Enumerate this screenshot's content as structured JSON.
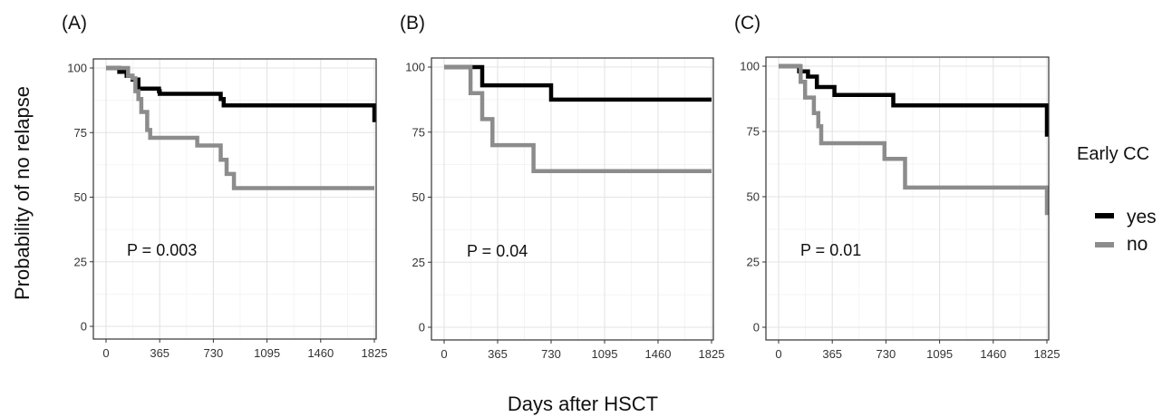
{
  "figure": {
    "x_axis_title": "Days after HSCT",
    "y_axis_title": "Probability of no relapse",
    "legend": {
      "title": "Early CC",
      "items": [
        {
          "label": "yes",
          "color": "#000000"
        },
        {
          "label": "no",
          "color": "#8c8c8c"
        }
      ]
    }
  },
  "chart_data": [
    {
      "type": "line",
      "panel": "(A)",
      "annotation": "P = 0.003",
      "xlim": [
        0,
        1825
      ],
      "ylim": [
        0,
        100
      ],
      "x_ticks": [
        0,
        365,
        730,
        1095,
        1460,
        1825
      ],
      "y_ticks": [
        0,
        25,
        50,
        75,
        100
      ],
      "grid": true,
      "series": [
        {
          "name": "yes",
          "color": "#000000",
          "x": [
            0,
            40,
            90,
            140,
            180,
            220,
            360,
            365,
            730,
            780,
            800,
            1760,
            1825
          ],
          "y": [
            100,
            100,
            98.5,
            97,
            95.5,
            92,
            91,
            90,
            90,
            88,
            85.5,
            85.5,
            79
          ]
        },
        {
          "name": "no",
          "color": "#8c8c8c",
          "x": [
            0,
            60,
            150,
            180,
            200,
            220,
            240,
            280,
            300,
            600,
            620,
            780,
            820,
            870,
            1825
          ],
          "y": [
            100,
            100,
            97,
            96,
            91,
            88,
            83,
            76,
            73,
            73,
            70,
            64.5,
            59,
            53.5,
            53.5
          ]
        }
      ]
    },
    {
      "type": "line",
      "panel": "(B)",
      "annotation": "P = 0.04",
      "xlim": [
        0,
        1825
      ],
      "ylim": [
        0,
        100
      ],
      "x_ticks": [
        0,
        365,
        730,
        1095,
        1460,
        1825
      ],
      "y_ticks": [
        0,
        25,
        50,
        75,
        100
      ],
      "grid": true,
      "series": [
        {
          "name": "yes",
          "color": "#000000",
          "x": [
            0,
            240,
            260,
            730,
            1825
          ],
          "y": [
            100,
            100,
            93,
            87.5,
            87.5
          ]
        },
        {
          "name": "no",
          "color": "#8c8c8c",
          "x": [
            0,
            60,
            180,
            260,
            330,
            600,
            610,
            1825
          ],
          "y": [
            100,
            100,
            90,
            80,
            70,
            70,
            60,
            60
          ]
        }
      ]
    },
    {
      "type": "line",
      "panel": "(C)",
      "annotation": "P = 0.01",
      "xlim": [
        0,
        1825
      ],
      "ylim": [
        0,
        100
      ],
      "x_ticks": [
        0,
        365,
        730,
        1095,
        1460,
        1825
      ],
      "y_ticks": [
        0,
        25,
        50,
        75,
        100
      ],
      "grid": true,
      "series": [
        {
          "name": "yes",
          "color": "#000000",
          "x": [
            0,
            80,
            140,
            200,
            260,
            380,
            760,
            780,
            1760,
            1825
          ],
          "y": [
            100,
            100,
            98,
            96,
            92,
            89,
            89,
            85,
            85,
            73
          ]
        },
        {
          "name": "no",
          "color": "#8c8c8c",
          "x": [
            0,
            120,
            150,
            180,
            240,
            270,
            290,
            640,
            720,
            860,
            1825
          ],
          "y": [
            100,
            100,
            94,
            88,
            82,
            77,
            70.5,
            70.5,
            64.5,
            53.5,
            43
          ]
        }
      ]
    }
  ]
}
